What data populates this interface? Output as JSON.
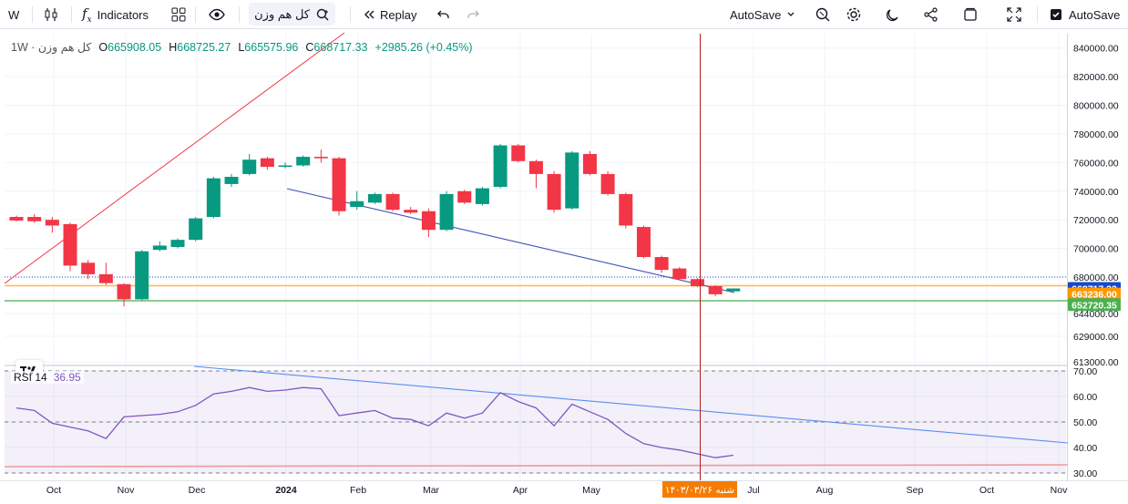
{
  "toolbar": {
    "interval": "W",
    "indicators_label": "Indicators",
    "symbol": "کل هم وزن",
    "replay_label": "Replay",
    "autosave_menu_label": "AutoSave",
    "autosave_toggle_label": "AutoSave"
  },
  "legend": {
    "symbol": "کل هم وزن",
    "interval": "1W",
    "open_label": "O",
    "open": "665908.05",
    "high_label": "H",
    "high": "668725.27",
    "low_label": "L",
    "low": "665575.96",
    "close_label": "C",
    "close": "668717.33",
    "change": "+2985.26 (+0.45%)"
  },
  "rsi_legend": {
    "name": "RSI 14",
    "value": "36.95"
  },
  "colors": {
    "up": "#089981",
    "down": "#f23645",
    "trendline_blue": "#3f51b5",
    "trendline_red": "#f23645",
    "rsi_line": "#7e57c2",
    "rsi_upper_trend": "#5b8def",
    "level_orange": "#ffb74d",
    "level_green": "#66bb6a",
    "crosshair": "#b71c1c"
  },
  "chart_data": [
    {
      "type": "candlestick",
      "interval": "1W",
      "y_axis_ticks": [
        840000,
        820000,
        800000,
        780000,
        760000,
        740000,
        720000,
        700000,
        680000,
        644000,
        629000,
        613000
      ],
      "ylim": [
        609000,
        850000
      ],
      "x_axis_labels": [
        "Oct",
        "Nov",
        "Dec",
        "2024",
        "Feb",
        "Mar",
        "Apr",
        "May",
        "Jul",
        "Aug",
        "Sep",
        "Oct",
        "Nov"
      ],
      "candles": [
        {
          "o": 722000,
          "h": 723000,
          "l": 719000,
          "c": 719500
        },
        {
          "o": 722000,
          "h": 724000,
          "l": 718000,
          "c": 719000
        },
        {
          "o": 720000,
          "h": 722000,
          "l": 711000,
          "c": 716000
        },
        {
          "o": 717000,
          "h": 718000,
          "l": 684000,
          "c": 688000
        },
        {
          "o": 690000,
          "h": 692000,
          "l": 678000,
          "c": 682000
        },
        {
          "o": 682000,
          "h": 690000,
          "l": 672000,
          "c": 674000
        },
        {
          "o": 673000,
          "h": 674000,
          "l": 651000,
          "c": 658000
        },
        {
          "o": 658000,
          "h": 699000,
          "l": 657000,
          "c": 698000
        },
        {
          "o": 699000,
          "h": 705000,
          "l": 698000,
          "c": 702000
        },
        {
          "o": 701000,
          "h": 707000,
          "l": 700000,
          "c": 706000
        },
        {
          "o": 706000,
          "h": 722000,
          "l": 705000,
          "c": 721000
        },
        {
          "o": 722000,
          "h": 750000,
          "l": 721000,
          "c": 749000
        },
        {
          "o": 745000,
          "h": 752000,
          "l": 743000,
          "c": 750000
        },
        {
          "o": 752000,
          "h": 766000,
          "l": 751000,
          "c": 762000
        },
        {
          "o": 763000,
          "h": 764000,
          "l": 755000,
          "c": 757000
        },
        {
          "o": 757000,
          "h": 760000,
          "l": 756000,
          "c": 758000
        },
        {
          "o": 758000,
          "h": 765000,
          "l": 757000,
          "c": 764000
        },
        {
          "o": 764000,
          "h": 769000,
          "l": 760000,
          "c": 763000
        },
        {
          "o": 763000,
          "h": 764000,
          "l": 723000,
          "c": 726000
        },
        {
          "o": 729000,
          "h": 740000,
          "l": 727000,
          "c": 733000
        },
        {
          "o": 732000,
          "h": 739000,
          "l": 731000,
          "c": 738000
        },
        {
          "o": 738000,
          "h": 739000,
          "l": 726000,
          "c": 727000
        },
        {
          "o": 727000,
          "h": 729000,
          "l": 724000,
          "c": 725000
        },
        {
          "o": 726000,
          "h": 728000,
          "l": 708000,
          "c": 713000
        },
        {
          "o": 713000,
          "h": 740000,
          "l": 712000,
          "c": 738000
        },
        {
          "o": 740000,
          "h": 741000,
          "l": 731000,
          "c": 732000
        },
        {
          "o": 731000,
          "h": 743000,
          "l": 730000,
          "c": 742000
        },
        {
          "o": 743000,
          "h": 773000,
          "l": 742000,
          "c": 772000
        },
        {
          "o": 772000,
          "h": 773000,
          "l": 760000,
          "c": 761000
        },
        {
          "o": 761000,
          "h": 762000,
          "l": 742000,
          "c": 752000
        },
        {
          "o": 752000,
          "h": 754000,
          "l": 725000,
          "c": 727000
        },
        {
          "o": 728000,
          "h": 768000,
          "l": 727000,
          "c": 767000
        },
        {
          "o": 766000,
          "h": 768000,
          "l": 751000,
          "c": 752000
        },
        {
          "o": 752000,
          "h": 754000,
          "l": 737000,
          "c": 738000
        },
        {
          "o": 738000,
          "h": 739000,
          "l": 714000,
          "c": 716000
        },
        {
          "o": 715000,
          "h": 716000,
          "l": 693000,
          "c": 694000
        },
        {
          "o": 694000,
          "h": 695000,
          "l": 683000,
          "c": 685000
        },
        {
          "o": 686000,
          "h": 687000,
          "l": 677000,
          "c": 678000
        },
        {
          "o": 678000,
          "h": 679000,
          "l": 670000,
          "c": 671000
        },
        {
          "o": 671000,
          "h": 672000,
          "l": 661000,
          "c": 663000
        },
        {
          "o": 665908.05,
          "h": 668725.27,
          "l": 665575.96,
          "c": 668717.33
        }
      ],
      "price_labels": [
        {
          "value": "668717.33",
          "color": "#1848cc"
        },
        {
          "value": "663236.00",
          "color": "#ff9800"
        },
        {
          "value": "652720.35",
          "color": "#4caf50"
        }
      ],
      "crosshair_date_label": "شنبه ۱۴۰۳/۰۳/۲۶"
    },
    {
      "type": "line",
      "name": "RSI 14",
      "y_axis_ticks": [
        70,
        60,
        50,
        40,
        30
      ],
      "ylim": [
        27,
        72
      ],
      "bands": [
        30,
        50,
        70
      ],
      "values": [
        55.5,
        54.5,
        49.5,
        48,
        46.5,
        43.5,
        52,
        52.5,
        53,
        54,
        56.5,
        61,
        62,
        63.5,
        62,
        62.5,
        63.5,
        63,
        52.5,
        53.5,
        54.5,
        51.5,
        51,
        48.5,
        53.5,
        51.5,
        53.5,
        61.5,
        58,
        55.5,
        48.5,
        57,
        54,
        51,
        45.5,
        41.5,
        40,
        39,
        37.5,
        36,
        36.95
      ]
    }
  ]
}
